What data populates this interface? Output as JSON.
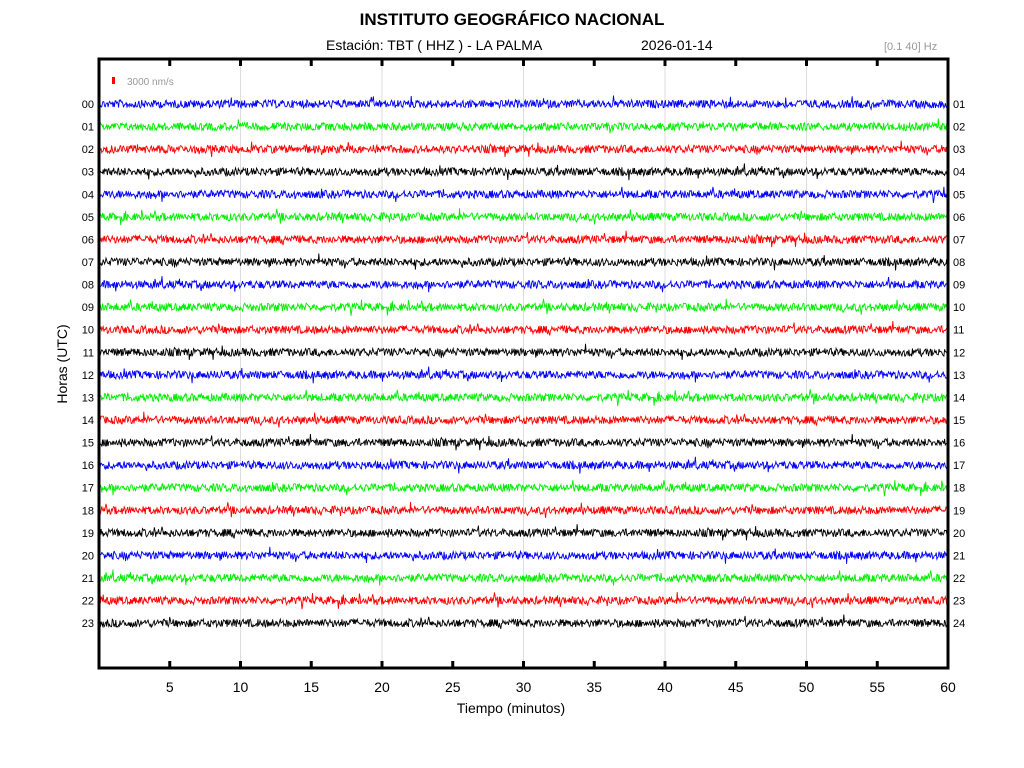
{
  "header": {
    "title": "INSTITUTO GEOGRÁFICO NACIONAL",
    "station": "Estación:  TBT ( HHZ ) - LA PALMA",
    "date": "2026-01-14",
    "filter": "[0.1 40] Hz"
  },
  "chart_data": {
    "type": "line",
    "title": "INSTITUTO GEOGRÁFICO NACIONAL",
    "xlabel": "Tiempo (minutos)",
    "ylabel": "Horas (UTC)",
    "xlim": [
      0,
      60
    ],
    "x_ticks": [
      5,
      10,
      15,
      20,
      25,
      30,
      35,
      40,
      45,
      50,
      55,
      60
    ],
    "x_grid": [
      10,
      20,
      30,
      40,
      50
    ],
    "scale_label": "3000 nm/s",
    "scale_color": "#ff0000",
    "left_labels": [
      "00",
      "01",
      "02",
      "03",
      "04",
      "05",
      "06",
      "07",
      "08",
      "09",
      "10",
      "11",
      "12",
      "13",
      "14",
      "15",
      "16",
      "17",
      "18",
      "19",
      "20",
      "21",
      "22",
      "23"
    ],
    "right_labels": [
      "01",
      "02",
      "03",
      "04",
      "05",
      "06",
      "07",
      "08",
      "09",
      "10",
      "11",
      "12",
      "13",
      "14",
      "15",
      "16",
      "17",
      "18",
      "19",
      "20",
      "21",
      "22",
      "23",
      "24"
    ],
    "series_colors": [
      "#0000ff",
      "#00ee00",
      "#ff0000",
      "#000000"
    ],
    "trace_description": "continuous background noise, ~1 trace per hour"
  }
}
